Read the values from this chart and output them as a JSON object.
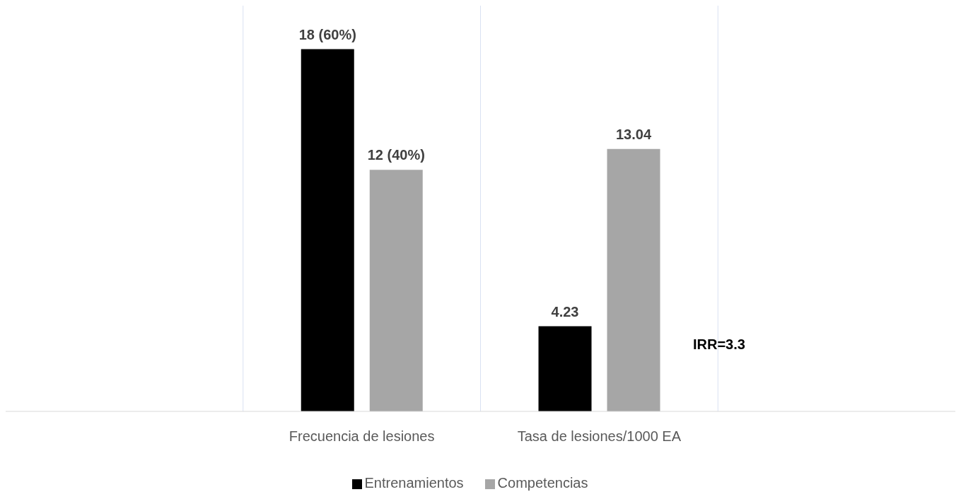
{
  "chart_data": {
    "type": "bar",
    "categories": [
      null,
      "Frecuencia de lesiones",
      "Tasa de lesiones/1000 EA",
      null
    ],
    "series": [
      {
        "name": "Entrenamientos",
        "color": "#000000",
        "values": [
          null,
          18,
          4.23,
          null
        ],
        "value_labels": [
          null,
          "18 (60%)",
          "4.23",
          null
        ]
      },
      {
        "name": "Competencias",
        "color": "#a6a6a6",
        "values": [
          null,
          12,
          13.04,
          null
        ],
        "value_labels": [
          null,
          "12 (40%)",
          "13.04",
          null
        ]
      }
    ],
    "tick_labels": "x",
    "grid": "x",
    "legend": "bottom",
    "annotations": [
      "IRR=3.3"
    ]
  }
}
